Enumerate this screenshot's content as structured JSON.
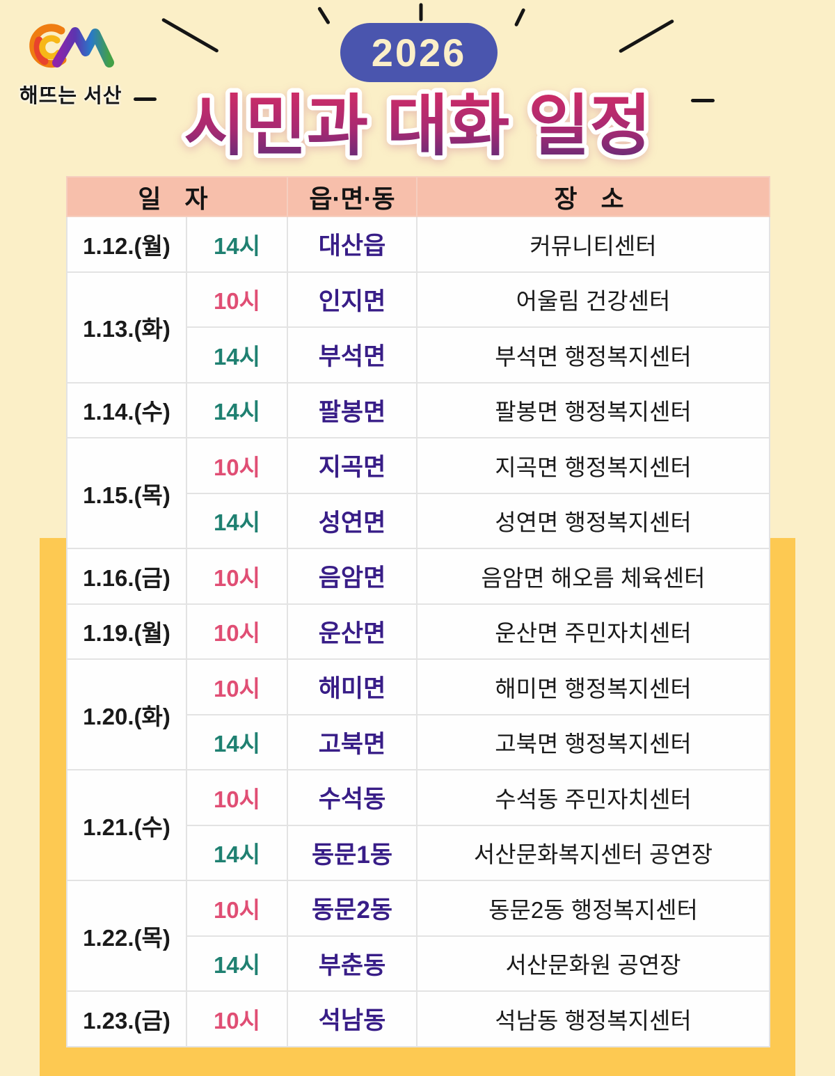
{
  "page": {
    "background_color": "#FBEFC7",
    "band_color": "#FDC952"
  },
  "logo": {
    "text": "해뜨는 서산"
  },
  "badge": {
    "year": "2026",
    "bg_color": "#4A55AE",
    "text_color": "#FCEFC8"
  },
  "title": {
    "text": "시민과 대화 일정",
    "gradient_top": "#D02C66",
    "gradient_mid": "#A62A72",
    "gradient_bottom": "#5E2C78"
  },
  "table": {
    "header_bg": "#F7BFAB",
    "headers": {
      "date": "일 자",
      "emd": "읍·면·동",
      "place": "장 소"
    },
    "emd_color": "#381D87",
    "time_colors": {
      "10시": "#E04E74",
      "14시": "#1F8071"
    },
    "rows": [
      {
        "date": "1.12.(월)",
        "span": 1,
        "time": "14시",
        "emd": "대산읍",
        "place": "커뮤니티센터"
      },
      {
        "date": "1.13.(화)",
        "span": 2,
        "time": "10시",
        "emd": "인지면",
        "place": "어울림 건강센터"
      },
      {
        "time": "14시",
        "emd": "부석면",
        "place": "부석면 행정복지센터"
      },
      {
        "date": "1.14.(수)",
        "span": 1,
        "time": "14시",
        "emd": "팔봉면",
        "place": "팔봉면 행정복지센터"
      },
      {
        "date": "1.15.(목)",
        "span": 2,
        "time": "10시",
        "emd": "지곡면",
        "place": "지곡면 행정복지센터"
      },
      {
        "time": "14시",
        "emd": "성연면",
        "place": "성연면 행정복지센터"
      },
      {
        "date": "1.16.(금)",
        "span": 1,
        "time": "10시",
        "emd": "음암면",
        "place": "음암면 해오름 체육센터"
      },
      {
        "date": "1.19.(월)",
        "span": 1,
        "time": "10시",
        "emd": "운산면",
        "place": "운산면 주민자치센터"
      },
      {
        "date": "1.20.(화)",
        "span": 2,
        "time": "10시",
        "emd": "해미면",
        "place": "해미면 행정복지센터"
      },
      {
        "time": "14시",
        "emd": "고북면",
        "place": "고북면 행정복지센터"
      },
      {
        "date": "1.21.(수)",
        "span": 2,
        "time": "10시",
        "emd": "수석동",
        "place": "수석동 주민자치센터"
      },
      {
        "time": "14시",
        "emd": "동문1동",
        "place": "서산문화복지센터 공연장"
      },
      {
        "date": "1.22.(목)",
        "span": 2,
        "time": "10시",
        "emd": "동문2동",
        "place": "동문2동 행정복지센터"
      },
      {
        "time": "14시",
        "emd": "부춘동",
        "place": "서산문화원 공연장"
      },
      {
        "date": "1.23.(금)",
        "span": 1,
        "time": "10시",
        "emd": "석남동",
        "place": "석남동 행정복지센터"
      }
    ]
  }
}
